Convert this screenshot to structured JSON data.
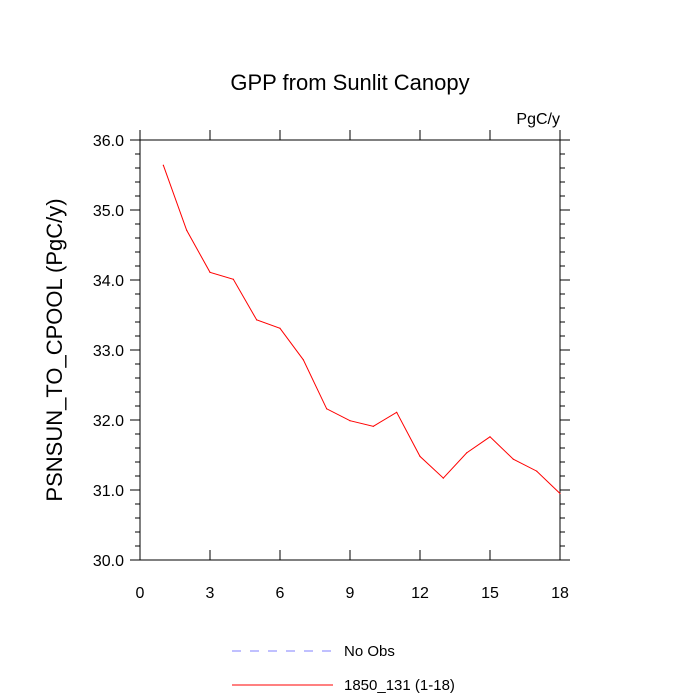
{
  "chart_data": {
    "type": "line",
    "title": "GPP from Sunlit Canopy",
    "units": "PgC/y",
    "xlabel": "",
    "ylabel": "PSNSUN_TO_CPOOL  (PgC/y)",
    "xlim": [
      0,
      18
    ],
    "ylim": [
      30.0,
      36.0
    ],
    "x_ticks": [
      0,
      3,
      6,
      9,
      12,
      15,
      18
    ],
    "x_tick_labels": [
      "0",
      "3",
      "6",
      "9",
      "12",
      "15",
      "18"
    ],
    "y_ticks": [
      30.0,
      31.0,
      32.0,
      33.0,
      34.0,
      35.0,
      36.0
    ],
    "y_tick_labels": [
      "30.0",
      "31.0",
      "32.0",
      "33.0",
      "34.0",
      "35.0",
      "36.0"
    ],
    "grid": false,
    "legend_position": "bottom",
    "series": [
      {
        "name": "No Obs",
        "color": "#8080ff",
        "dashed": true,
        "x": [],
        "y": []
      },
      {
        "name": "1850_131 (1-18)",
        "color": "#ff0000",
        "dashed": false,
        "x": [
          1,
          2,
          3,
          4,
          5,
          6,
          7,
          8,
          9,
          10,
          11,
          12,
          13,
          14,
          15,
          16,
          17,
          18
        ],
        "y": [
          35.64,
          34.71,
          34.11,
          34.01,
          33.43,
          33.31,
          32.86,
          32.16,
          31.99,
          31.91,
          32.11,
          31.48,
          31.17,
          31.53,
          31.76,
          31.44,
          31.27,
          30.95
        ]
      }
    ]
  }
}
